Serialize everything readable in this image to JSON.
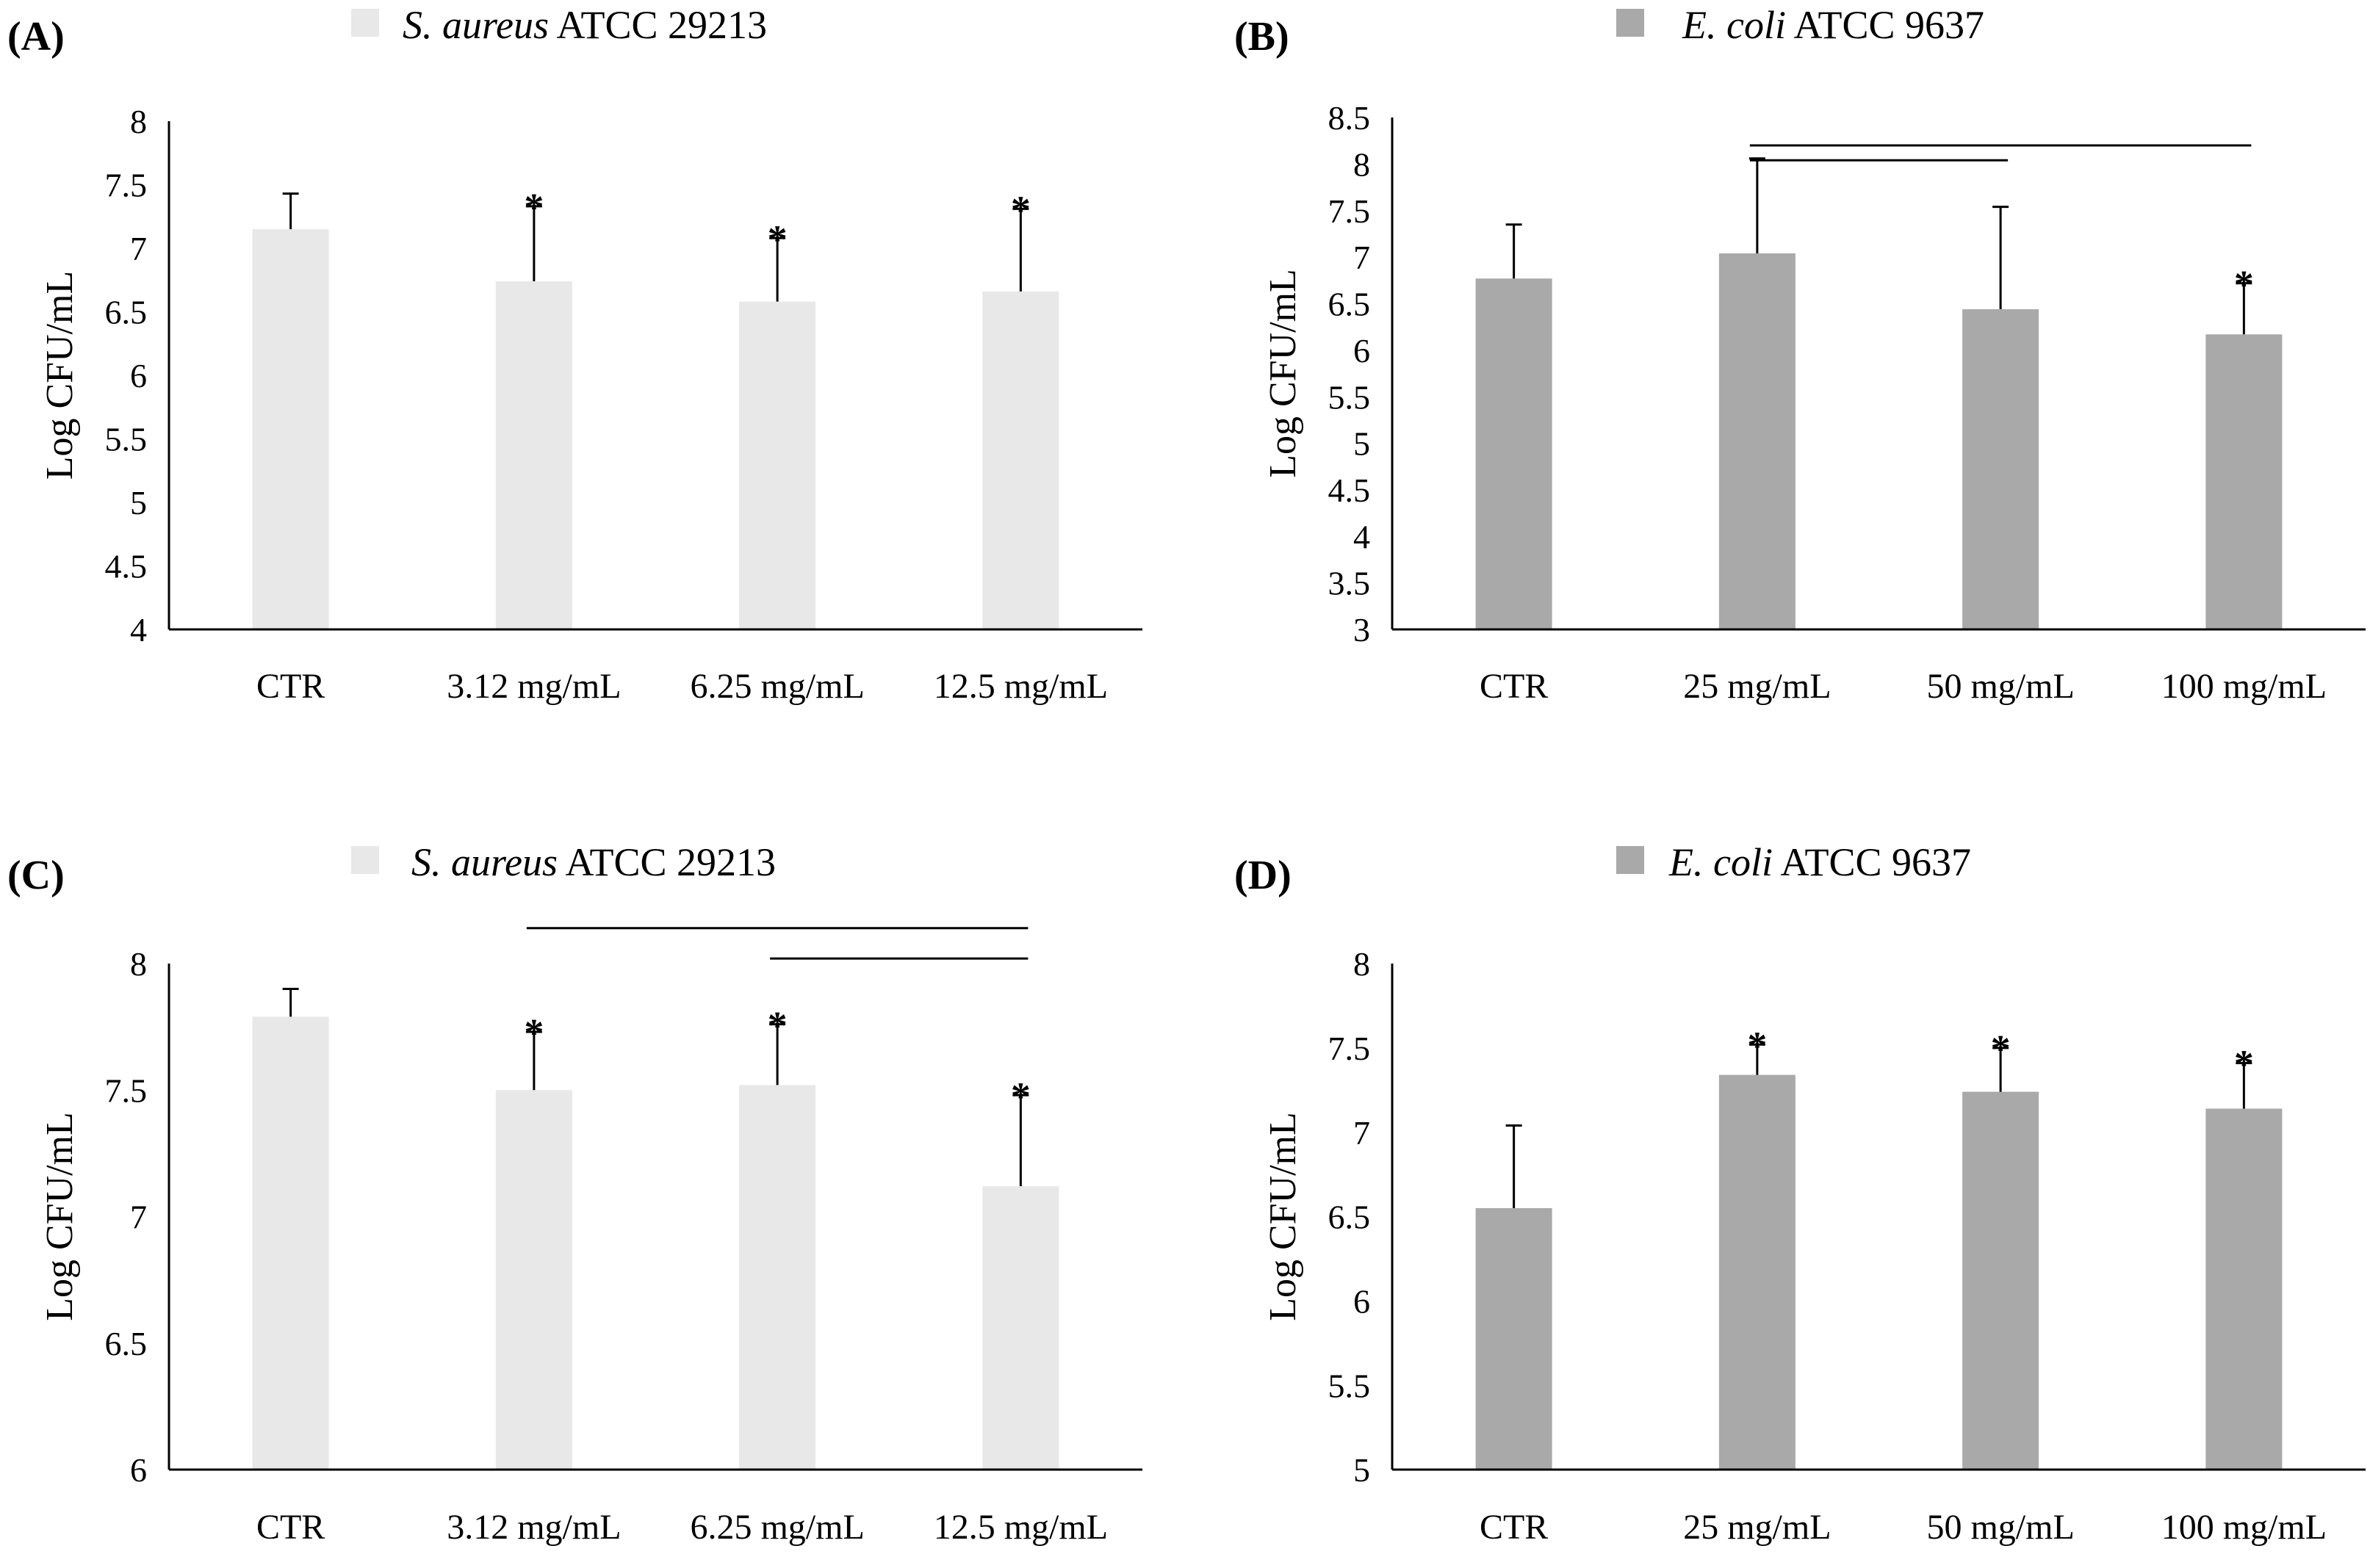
{
  "chart_data": [
    {
      "type": "bar",
      "panel_label": "(A)",
      "legend": {
        "italic": "S. aureus",
        "rest": " ATCC 29213"
      },
      "color": "#e8e8e8",
      "ylabel": "Log CFU/mL",
      "ylim": [
        4,
        8
      ],
      "yticks": [
        "4",
        "4.5",
        "5",
        "5.5",
        "6",
        "6.5",
        "7",
        "7.5",
        "8"
      ],
      "categories": [
        "CTR",
        "3.12 mg/mL",
        "6.25 mg/mL",
        "12.5 mg/mL"
      ],
      "values": [
        7.15,
        6.74,
        6.58,
        6.66
      ],
      "errors": [
        0.28,
        0.59,
        0.5,
        0.65
      ],
      "significance": [
        "",
        "*",
        "*",
        "*"
      ],
      "comparison_lines": []
    },
    {
      "type": "bar",
      "panel_label": "(B)",
      "legend": {
        "italic": "E. coli",
        "rest": " ATCC 9637"
      },
      "color": "#a9a9a9",
      "ylabel": "Log CFU/mL",
      "ylim": [
        3,
        8.5
      ],
      "yticks": [
        "3",
        "3.5",
        "4",
        "4.5",
        "5",
        "5.5",
        "6",
        "6.5",
        "7",
        "7.5",
        "8",
        "8.5"
      ],
      "categories": [
        "CTR",
        "25 mg/mL",
        "50 mg/mL",
        "100 mg/mL"
      ],
      "values": [
        6.77,
        7.04,
        6.44,
        6.17
      ],
      "errors": [
        0.58,
        1.02,
        1.1,
        0.55
      ],
      "significance": [
        "",
        "",
        "",
        "*"
      ],
      "comparison_lines": [
        {
          "from": 1,
          "to": 3,
          "level": 8.2
        },
        {
          "from": 1,
          "to": 2,
          "level": 8.04
        }
      ]
    },
    {
      "type": "bar",
      "panel_label": "(C)",
      "legend": {
        "italic": "S. aureus",
        "rest": " ATCC 29213"
      },
      "color": "#e8e8e8",
      "ylabel": "Log CFU/mL",
      "ylim": [
        6,
        8
      ],
      "yticks": [
        "6",
        "6.5",
        "7",
        "7.5",
        "8"
      ],
      "categories": [
        "CTR",
        "3.12 mg/mL",
        "6.25 mg/mL",
        "12.5 mg/mL"
      ],
      "values": [
        7.79,
        7.5,
        7.52,
        7.12
      ],
      "errors": [
        0.11,
        0.23,
        0.24,
        0.36
      ],
      "significance": [
        "",
        "*",
        "*",
        "*"
      ],
      "comparison_lines": [
        {
          "from": 1,
          "to": 3,
          "level": 8.14
        },
        {
          "from": 2,
          "to": 3,
          "level": 8.02
        }
      ]
    },
    {
      "type": "bar",
      "panel_label": "(D)",
      "legend": {
        "italic": "E. coli",
        "rest": " ATCC 9637"
      },
      "color": "#a9a9a9",
      "ylabel": "Log CFU/mL",
      "ylim": [
        5,
        8
      ],
      "yticks": [
        "5",
        "5.5",
        "6",
        "6.5",
        "7",
        "7.5",
        "8"
      ],
      "categories": [
        "CTR",
        "25 mg/mL",
        "50 mg/mL",
        "100 mg/mL"
      ],
      "values": [
        6.55,
        7.34,
        7.24,
        7.14
      ],
      "errors": [
        0.49,
        0.18,
        0.26,
        0.27
      ],
      "significance": [
        "",
        "*",
        "*",
        "*"
      ],
      "comparison_lines": []
    }
  ]
}
